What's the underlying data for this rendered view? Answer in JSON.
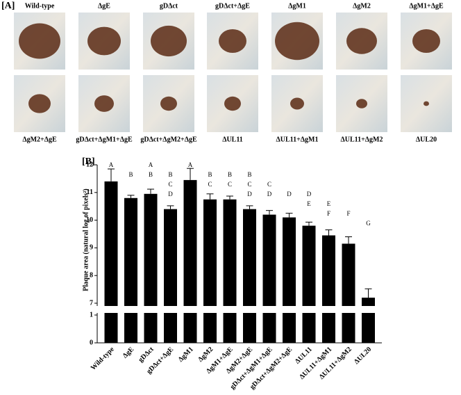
{
  "panel_a": {
    "label": "[A]",
    "images": [
      "Wild-type",
      "ΔgE",
      "gDΔct",
      "gDΔct+ΔgE",
      "ΔgM1",
      "ΔgM2",
      "ΔgM1+ΔgE",
      "ΔgM2+ΔgE",
      "gDΔct+ΔgM1+ΔgE",
      "gDΔct+ΔgM2+ΔgE",
      "ΔUL11",
      "ΔUL11+ΔgM1",
      "ΔUL11+ΔgM2",
      "ΔUL20"
    ]
  },
  "chart_data": {
    "type": "bar",
    "panel_label": "[B]",
    "y_label": "Plaque area (natural log of pixels²)",
    "categories": [
      "Wild-type",
      "ΔgE",
      "gDΔct",
      "gDΔct+ΔgE",
      "ΔgM1",
      "ΔgM2",
      "ΔgM1+ΔgE",
      "ΔgM2+ΔgE",
      "gDΔct+ΔgM1+ΔgE",
      "gDΔct+ΔgM2+ΔgE",
      "ΔUL11",
      "ΔUL11+ΔgM1",
      "ΔUL11+ΔgM2",
      "ΔUL20"
    ],
    "values": [
      11.4,
      10.8,
      10.95,
      10.4,
      11.45,
      10.75,
      10.75,
      10.4,
      10.2,
      10.1,
      9.8,
      9.45,
      9.15,
      7.2
    ],
    "errors": [
      0.45,
      0.1,
      0.17,
      0.12,
      0.42,
      0.2,
      0.12,
      0.12,
      0.15,
      0.15,
      0.13,
      0.2,
      0.25,
      0.32
    ],
    "letters": [
      [
        "A"
      ],
      [
        "B"
      ],
      [
        "A",
        "B"
      ],
      [
        "B",
        "C",
        "D"
      ],
      [
        "A"
      ],
      [
        "B",
        "C"
      ],
      [
        "B",
        "C"
      ],
      [
        "B",
        "C",
        "D"
      ],
      [
        "C",
        "D"
      ],
      [
        "D"
      ],
      [
        "D",
        "E"
      ],
      [
        "E",
        "F"
      ],
      [
        "F"
      ],
      [
        "G"
      ]
    ],
    "color": "#000000",
    "ylim": [
      7,
      12
    ],
    "yticks": [
      7,
      8,
      9,
      10,
      11,
      12
    ],
    "ylim_lower": [
      0,
      1
    ],
    "yticks_lower": [
      0,
      1
    ]
  }
}
